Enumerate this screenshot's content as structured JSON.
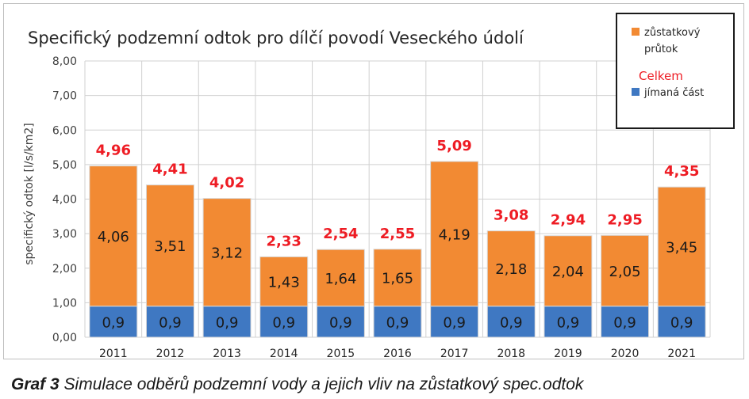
{
  "chart_data": {
    "type": "bar",
    "stacked": true,
    "title": "Specifický podzemní odtok pro dílčí povodí Veseckého údolí",
    "xlabel": "",
    "ylabel": "specifický odtok  [l/s/km2]",
    "ylim": [
      0,
      8
    ],
    "yticks": [
      "0,00",
      "1,00",
      "2,00",
      "3,00",
      "4,00",
      "5,00",
      "6,00",
      "7,00",
      "8,00"
    ],
    "grid": true,
    "categories": [
      "2011",
      "2012",
      "2013",
      "2014",
      "2015",
      "2016",
      "2017",
      "2018",
      "2019",
      "2020",
      "2021"
    ],
    "series": [
      {
        "name": "jímaná část",
        "color": "#3f78c2",
        "values": [
          0.9,
          0.9,
          0.9,
          0.9,
          0.9,
          0.9,
          0.9,
          0.9,
          0.9,
          0.9,
          0.9
        ],
        "labels": [
          "0,9",
          "0,9",
          "0,9",
          "0,9",
          "0,9",
          "0,9",
          "0,9",
          "0,9",
          "0,9",
          "0,9",
          "0,9"
        ]
      },
      {
        "name": "zůstatkový průtok",
        "color": "#f28a33",
        "values": [
          4.06,
          3.51,
          3.12,
          1.43,
          1.64,
          1.65,
          4.19,
          2.18,
          2.04,
          2.05,
          3.45
        ],
        "labels": [
          "4,06",
          "3,51",
          "3,12",
          "1,43",
          "1,64",
          "1,65",
          "4,19",
          "2,18",
          "2,04",
          "2,05",
          "3,45"
        ]
      }
    ],
    "totals": {
      "name": "Celkem",
      "color": "#ee1c24",
      "values": [
        4.96,
        4.41,
        4.02,
        2.33,
        2.54,
        2.55,
        5.09,
        3.08,
        2.94,
        2.95,
        4.35
      ],
      "labels": [
        "4,96",
        "4,41",
        "4,02",
        "2,33",
        "2,54",
        "2,55",
        "5,09",
        "3,08",
        "2,94",
        "2,95",
        "4,35"
      ]
    },
    "legend": {
      "placement": "top-right",
      "items": [
        {
          "line1": "zůstatkový",
          "line2": "průtok",
          "color": "#f28a33"
        },
        {
          "line1": "Celkem",
          "color": "#ee1c24",
          "text_only": true
        },
        {
          "line1": "jímaná část",
          "color": "#3f78c2"
        }
      ]
    }
  },
  "caption": {
    "label": "Graf 3",
    "text": " Simulace odběrů podzemní vody a jejich vliv na zůstatkový spec.odtok"
  }
}
